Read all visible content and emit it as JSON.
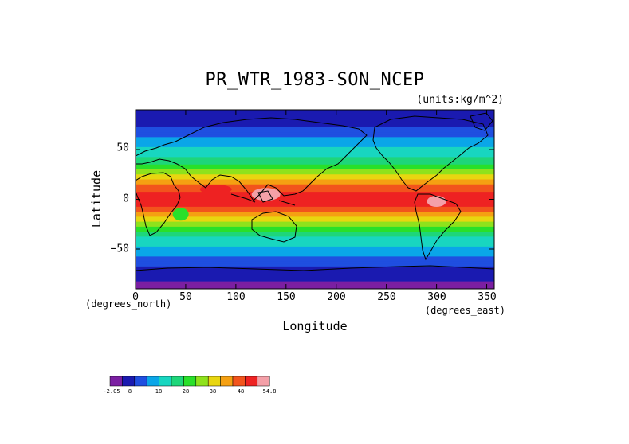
{
  "title": "PR_WTR_1983-SON_NCEP",
  "units": "(units:kg/m^2)",
  "x_axis": {
    "label": "Longitude",
    "units": "(degrees_east)",
    "ticks": [
      "0",
      "50",
      "100",
      "150",
      "200",
      "250",
      "300",
      "350"
    ]
  },
  "y_axis": {
    "label": "Latitude",
    "units": "(degrees_north)",
    "ticks": [
      "50",
      "0",
      "−50"
    ]
  },
  "map_extent": {
    "lon": [
      0,
      357.5
    ],
    "lat": [
      -90,
      90
    ]
  },
  "colorbar": {
    "colors": [
      "#7b1fa2",
      "#1a1ab0",
      "#1f4fe0",
      "#0aa6e8",
      "#18d6c0",
      "#1ed67a",
      "#29e02a",
      "#8fe21c",
      "#e8d610",
      "#f5a012",
      "#f2541c",
      "#ee2222",
      "#f4a0a8"
    ],
    "labels": [
      "-2.05",
      "8",
      "18",
      "28",
      "38",
      "48",
      "54.8"
    ]
  },
  "chart_data": {
    "type": "heatmap",
    "title": "PR_WTR_1983-SON_NCEP",
    "xlabel": "Longitude",
    "ylabel": "Latitude",
    "xlim": [
      0,
      357.5
    ],
    "ylim": [
      -90,
      90
    ],
    "zlim": [
      -2.05,
      54.8
    ],
    "units": "kg/m^2",
    "zonal_profile": {
      "lat": [
        -90,
        -75,
        -65,
        -55,
        -45,
        -35,
        -25,
        -15,
        -5,
        5,
        15,
        25,
        35,
        45,
        55,
        65,
        75,
        90
      ],
      "value": [
        1,
        4,
        8,
        12,
        16,
        22,
        30,
        40,
        48,
        48,
        42,
        33,
        24,
        18,
        14,
        10,
        6,
        4
      ]
    }
  }
}
